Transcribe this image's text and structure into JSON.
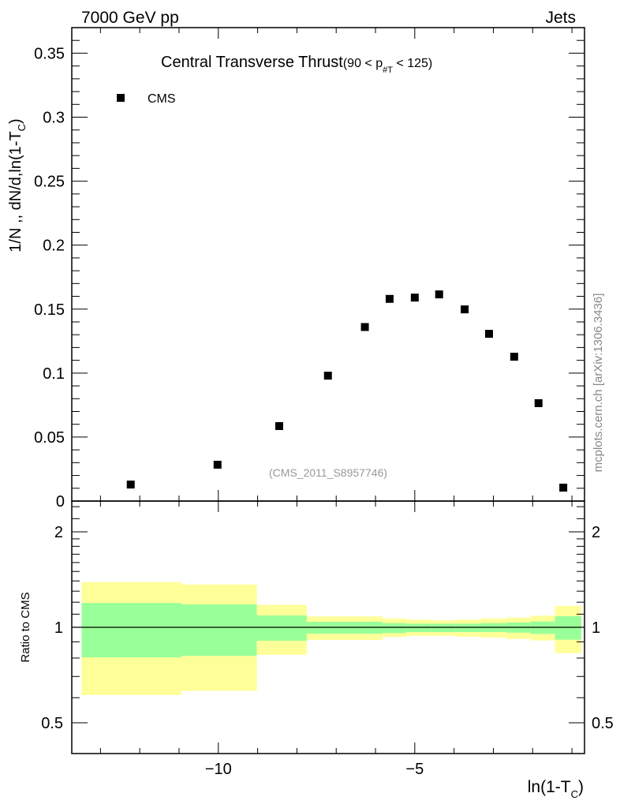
{
  "chart_data": {
    "type": "scatter",
    "header_left": "7000 GeV pp",
    "header_right": "Jets",
    "title": "Central Transverse Thrust",
    "title_suffix_a": "(90 < p",
    "title_sub": "#T",
    "title_suffix_b": " < 125)",
    "ylabel_main": "1/N ,, dN/d,ln(1-T",
    "ylabel_main_sub": "C",
    "ylabel_main_end": ")",
    "ylabel_ratio": "Ratio to CMS",
    "xlabel": "ln(1-T",
    "xlabel_sub": "C",
    "xlabel_end": ")",
    "watermark": "(CMS_2011_S8957746)",
    "side_text": "mcplots.cern.ch [arXiv:1306.3436]",
    "legend": [
      {
        "name": "CMS",
        "marker": "square",
        "color": "#000000",
        "placement": "top-left"
      }
    ],
    "xlim": [
      -13.73,
      -0.68
    ],
    "ylim_main": [
      0,
      0.37
    ],
    "ylim_ratio": [
      0.4,
      2.5
    ],
    "ratio_scale": "log",
    "x_ticks": [
      {
        "v": -10,
        "label": "−10"
      },
      {
        "v": -5,
        "label": "−5"
      }
    ],
    "y_ticks_main": [
      {
        "v": 0,
        "label": "0"
      },
      {
        "v": 0.05,
        "label": "0.05"
      },
      {
        "v": 0.1,
        "label": "0.1"
      },
      {
        "v": 0.15,
        "label": "0.15"
      },
      {
        "v": 0.2,
        "label": "0.2"
      },
      {
        "v": 0.25,
        "label": "0.25"
      },
      {
        "v": 0.3,
        "label": "0.3"
      },
      {
        "v": 0.35,
        "label": "0.35"
      }
    ],
    "y_ticks_ratio": [
      {
        "v": 0.5,
        "label": "0.5"
      },
      {
        "v": 1,
        "label": "1"
      },
      {
        "v": 2,
        "label": "2"
      }
    ],
    "series": [
      {
        "name": "CMS",
        "x": [
          -12.23,
          -10.02,
          -8.45,
          -7.21,
          -6.27,
          -5.64,
          -5.0,
          -4.38,
          -3.73,
          -3.11,
          -2.47,
          -1.85,
          -1.22
        ],
        "y": [
          0.0129,
          0.0284,
          0.0586,
          0.098,
          0.136,
          0.158,
          0.159,
          0.1615,
          0.1498,
          0.1307,
          0.1128,
          0.0765,
          0.0105
        ]
      }
    ],
    "ratio_bands": {
      "edges": [
        -13.48,
        -10.94,
        -9.02,
        -7.75,
        -5.82,
        -5.21,
        -4.58,
        -3.96,
        -3.31,
        -2.67,
        -2.05,
        -1.43,
        -0.76
      ],
      "yellow_hi": [
        1.388,
        1.365,
        1.177,
        1.082,
        1.065,
        1.057,
        1.051,
        1.057,
        1.065,
        1.073,
        1.088,
        1.168
      ],
      "yellow_lo": [
        0.612,
        0.631,
        0.819,
        0.912,
        0.932,
        0.94,
        0.94,
        0.934,
        0.928,
        0.919,
        0.909,
        0.829
      ],
      "green_hi": [
        1.193,
        1.181,
        1.09,
        1.041,
        1.031,
        1.027,
        1.027,
        1.027,
        1.031,
        1.035,
        1.043,
        1.084
      ],
      "green_lo": [
        0.804,
        0.813,
        0.907,
        0.955,
        0.959,
        0.966,
        0.966,
        0.966,
        0.966,
        0.962,
        0.953,
        0.914
      ],
      "yellow_color": "#ffff99",
      "green_color": "#99ff99"
    }
  }
}
